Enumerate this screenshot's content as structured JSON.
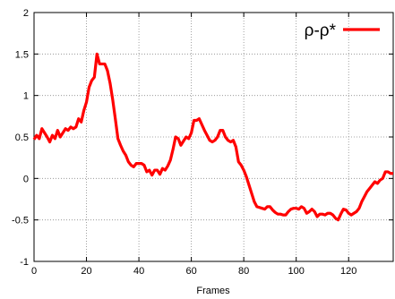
{
  "chart_data": {
    "type": "line",
    "title": "",
    "xlabel": "Frames",
    "ylabel": "",
    "xlim": [
      0,
      137
    ],
    "ylim": [
      -1,
      2
    ],
    "x_ticks": [
      0,
      20,
      40,
      60,
      80,
      100,
      120
    ],
    "x_tick_labels": [
      "0",
      "20",
      "40",
      "60",
      "80",
      "100",
      "120"
    ],
    "y_ticks": [
      -1,
      -0.5,
      0,
      0.5,
      1,
      1.5,
      2
    ],
    "y_tick_labels": [
      "-1",
      "-0.5",
      "0",
      "0.5",
      "1",
      "1.5",
      "2"
    ],
    "grid": true,
    "legend_position": "top-right",
    "series": [
      {
        "name": "ρ-ρ*",
        "color": "#ff0000",
        "x": [
          0,
          1,
          2,
          3,
          4,
          5,
          6,
          7,
          8,
          9,
          10,
          11,
          12,
          13,
          14,
          15,
          16,
          17,
          18,
          19,
          20,
          21,
          22,
          23,
          24,
          25,
          26,
          27,
          28,
          29,
          30,
          31,
          32,
          33,
          34,
          35,
          36,
          37,
          38,
          39,
          40,
          41,
          42,
          43,
          44,
          45,
          46,
          47,
          48,
          49,
          50,
          51,
          52,
          53,
          54,
          55,
          56,
          57,
          58,
          59,
          60,
          61,
          62,
          63,
          64,
          65,
          66,
          67,
          68,
          69,
          70,
          71,
          72,
          73,
          74,
          75,
          76,
          77,
          78,
          79,
          80,
          81,
          82,
          83,
          84,
          85,
          86,
          87,
          88,
          89,
          90,
          91,
          92,
          93,
          94,
          95,
          96,
          97,
          98,
          99,
          100,
          101,
          102,
          103,
          104,
          105,
          106,
          107,
          108,
          109,
          110,
          111,
          112,
          113,
          114,
          115,
          116,
          117,
          118,
          119,
          120,
          121,
          122,
          123,
          124,
          125,
          126,
          127,
          128,
          129,
          130,
          131,
          132,
          133,
          134,
          135,
          136,
          137
        ],
        "y": [
          0.47,
          0.52,
          0.48,
          0.6,
          0.55,
          0.5,
          0.44,
          0.52,
          0.48,
          0.58,
          0.5,
          0.55,
          0.6,
          0.58,
          0.62,
          0.6,
          0.62,
          0.72,
          0.68,
          0.82,
          0.92,
          1.1,
          1.18,
          1.22,
          1.5,
          1.38,
          1.38,
          1.38,
          1.3,
          1.15,
          0.95,
          0.72,
          0.48,
          0.4,
          0.33,
          0.28,
          0.2,
          0.16,
          0.14,
          0.18,
          0.18,
          0.18,
          0.16,
          0.08,
          0.1,
          0.04,
          0.1,
          0.1,
          0.05,
          0.12,
          0.1,
          0.15,
          0.22,
          0.35,
          0.5,
          0.48,
          0.4,
          0.45,
          0.5,
          0.48,
          0.55,
          0.7,
          0.7,
          0.72,
          0.65,
          0.58,
          0.52,
          0.46,
          0.44,
          0.46,
          0.5,
          0.58,
          0.58,
          0.5,
          0.46,
          0.44,
          0.46,
          0.38,
          0.2,
          0.16,
          0.1,
          0.02,
          -0.08,
          -0.18,
          -0.28,
          -0.34,
          -0.35,
          -0.36,
          -0.37,
          -0.34,
          -0.34,
          -0.38,
          -0.41,
          -0.43,
          -0.43,
          -0.44,
          -0.44,
          -0.4,
          -0.37,
          -0.36,
          -0.36,
          -0.37,
          -0.34,
          -0.36,
          -0.42,
          -0.4,
          -0.37,
          -0.4,
          -0.46,
          -0.43,
          -0.43,
          -0.44,
          -0.42,
          -0.42,
          -0.44,
          -0.48,
          -0.5,
          -0.43,
          -0.37,
          -0.38,
          -0.42,
          -0.44,
          -0.42,
          -0.4,
          -0.36,
          -0.28,
          -0.22,
          -0.16,
          -0.12,
          -0.08,
          -0.04,
          -0.06,
          -0.02,
          0.0,
          0.08,
          0.08,
          0.06,
          0.06
        ]
      }
    ]
  }
}
